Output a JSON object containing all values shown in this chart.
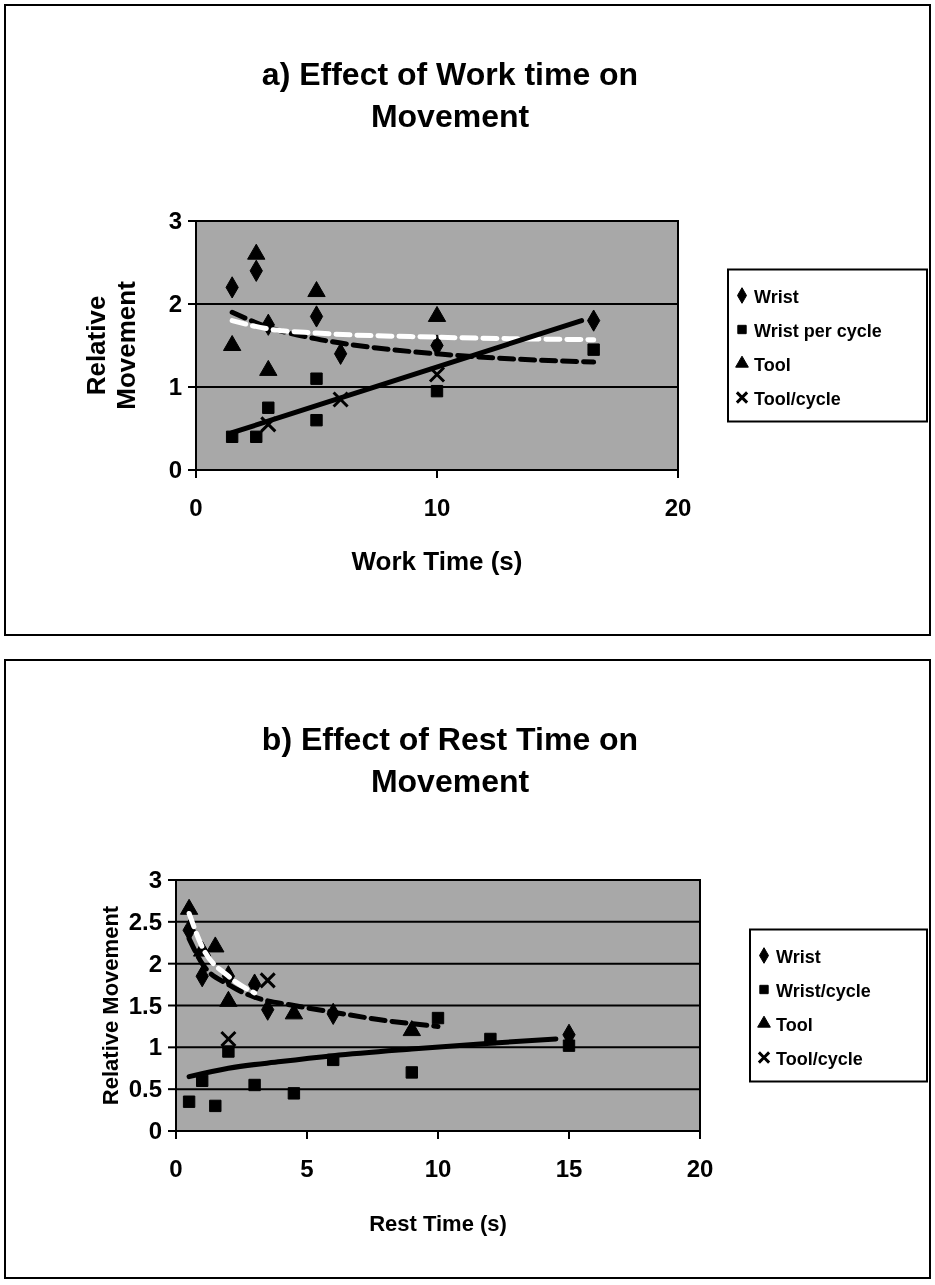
{
  "chart_data": [
    {
      "type": "scatter",
      "title": "a) Effect of Work time on Movement",
      "xlabel": "Work Time (s)",
      "ylabel": "Relative Movement",
      "xlim": [
        0,
        20
      ],
      "xticks": [
        0,
        10,
        20
      ],
      "ylim": [
        0,
        3
      ],
      "yticks": [
        0,
        1,
        2,
        3
      ],
      "grid": "y",
      "legend": "right",
      "series": [
        {
          "name": "Wrist",
          "marker": "diamond",
          "color": "#000000",
          "x": [
            1.5,
            2.5,
            3,
            5,
            6,
            10,
            16.5
          ],
          "values": [
            2.2,
            2.4,
            1.75,
            1.85,
            1.4,
            1.5,
            1.8
          ]
        },
        {
          "name": "Wrist per cycle",
          "marker": "square",
          "color": "#000000",
          "x": [
            1.5,
            2.5,
            3,
            5,
            5,
            10,
            16.5
          ],
          "values": [
            0.4,
            0.4,
            0.75,
            0.6,
            1.1,
            0.95,
            1.45
          ]
        },
        {
          "name": "Tool",
          "marker": "triangle",
          "color": "#000000",
          "x": [
            1.5,
            2.5,
            3,
            5,
            10
          ],
          "values": [
            1.5,
            2.6,
            1.2,
            2.15,
            1.85
          ]
        },
        {
          "name": "Tool/cycle",
          "marker": "cross",
          "color": "#000000",
          "x": [
            3,
            6,
            10
          ],
          "values": [
            0.55,
            0.85,
            1.15
          ]
        },
        {
          "type": "line",
          "marker": "none",
          "line_style": "dashed",
          "color": "#000000",
          "x": [
            1.5,
            3,
            5,
            7.5,
            10,
            13,
            16.5
          ],
          "values": [
            1.9,
            1.72,
            1.58,
            1.47,
            1.4,
            1.34,
            1.3
          ]
        },
        {
          "type": "line",
          "marker": "none",
          "line_style": "dashed",
          "color": "#ffffff",
          "x": [
            1.5,
            3,
            5,
            10,
            16.5
          ],
          "values": [
            1.8,
            1.7,
            1.65,
            1.6,
            1.57
          ]
        },
        {
          "type": "line",
          "marker": "none",
          "line_style": "solid",
          "color": "#000000",
          "x": [
            1.5,
            16
          ],
          "values": [
            0.45,
            1.8
          ]
        }
      ]
    },
    {
      "type": "scatter",
      "title": "b) Effect of Rest Time on Movement",
      "xlabel": "Rest Time (s)",
      "ylabel": "Relative Movement",
      "xlim": [
        0,
        20
      ],
      "xticks": [
        0,
        5,
        10,
        15,
        20
      ],
      "ylim": [
        0,
        3
      ],
      "yticks": [
        0,
        0.5,
        1,
        1.5,
        2,
        2.5,
        3
      ],
      "grid": "y",
      "legend": "right",
      "series": [
        {
          "name": "Wrist",
          "marker": "diamond",
          "color": "#000000",
          "x": [
            0.5,
            1,
            2,
            3,
            3.5,
            6,
            15
          ],
          "values": [
            2.4,
            1.85,
            1.85,
            1.75,
            1.45,
            1.4,
            1.15
          ]
        },
        {
          "name": "Wrist/cycle",
          "marker": "square",
          "color": "#000000",
          "x": [
            0.5,
            1,
            1.5,
            2,
            3,
            4.5,
            6,
            9,
            10,
            12,
            15
          ],
          "values": [
            0.35,
            0.6,
            0.3,
            0.95,
            0.55,
            0.45,
            0.85,
            0.7,
            1.35,
            1.1,
            1.02
          ]
        },
        {
          "name": "Tool",
          "marker": "triangle",
          "color": "#000000",
          "x": [
            0.5,
            1,
            1.5,
            2,
            4.5,
            9
          ],
          "values": [
            2.65,
            2.15,
            2.2,
            1.55,
            1.4,
            1.2
          ]
        },
        {
          "name": "Tool/cycle",
          "marker": "cross",
          "color": "#000000",
          "x": [
            2,
            3.5
          ],
          "values": [
            1.1,
            1.8
          ]
        },
        {
          "type": "line",
          "marker": "none",
          "line_style": "dashed",
          "color": "#000000",
          "x": [
            0.5,
            1,
            2,
            3,
            4.5,
            6,
            8,
            10
          ],
          "values": [
            2.3,
            2.0,
            1.75,
            1.6,
            1.5,
            1.42,
            1.32,
            1.25
          ]
        },
        {
          "type": "line",
          "marker": "none",
          "line_style": "dashed",
          "color": "#ffffff",
          "x": [
            0.5,
            1,
            2,
            3
          ],
          "values": [
            2.6,
            2.2,
            1.85,
            1.65
          ]
        },
        {
          "type": "line",
          "marker": "none",
          "line_style": "solid",
          "color": "#000000",
          "x": [
            0.5,
            2,
            4,
            6,
            9,
            12,
            14.5
          ],
          "values": [
            0.65,
            0.75,
            0.83,
            0.9,
            0.98,
            1.05,
            1.1
          ]
        }
      ]
    }
  ]
}
